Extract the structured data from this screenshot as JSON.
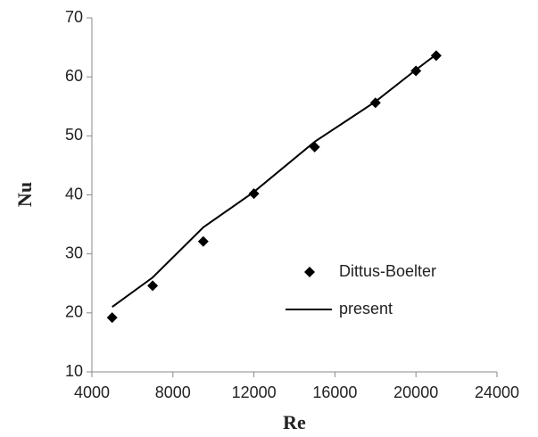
{
  "chart_data": {
    "type": "scatter",
    "x_label": "Re",
    "y_label": "Nu",
    "x": [
      5000,
      7000,
      9500,
      12000,
      15000,
      18000,
      20000,
      21000
    ],
    "series": [
      {
        "name": "Dittus-Boelter",
        "color": "#000000",
        "style": "marker",
        "values": [
          19.2,
          24.6,
          32.1,
          40.2,
          48.1,
          55.6,
          61.0,
          63.6
        ]
      },
      {
        "name": "present",
        "color": "#000000",
        "style": "line",
        "values": [
          21.0,
          26.0,
          34.5,
          40.5,
          49.0,
          55.8,
          61.2,
          63.8
        ]
      }
    ],
    "xlim": [
      4000,
      24000
    ],
    "xticks": [
      4000,
      8000,
      12000,
      16000,
      20000,
      24000
    ],
    "ylim": [
      10,
      70
    ],
    "yticks": [
      10,
      20,
      30,
      40,
      50,
      60,
      70
    ],
    "legend": "right",
    "grid": false
  }
}
